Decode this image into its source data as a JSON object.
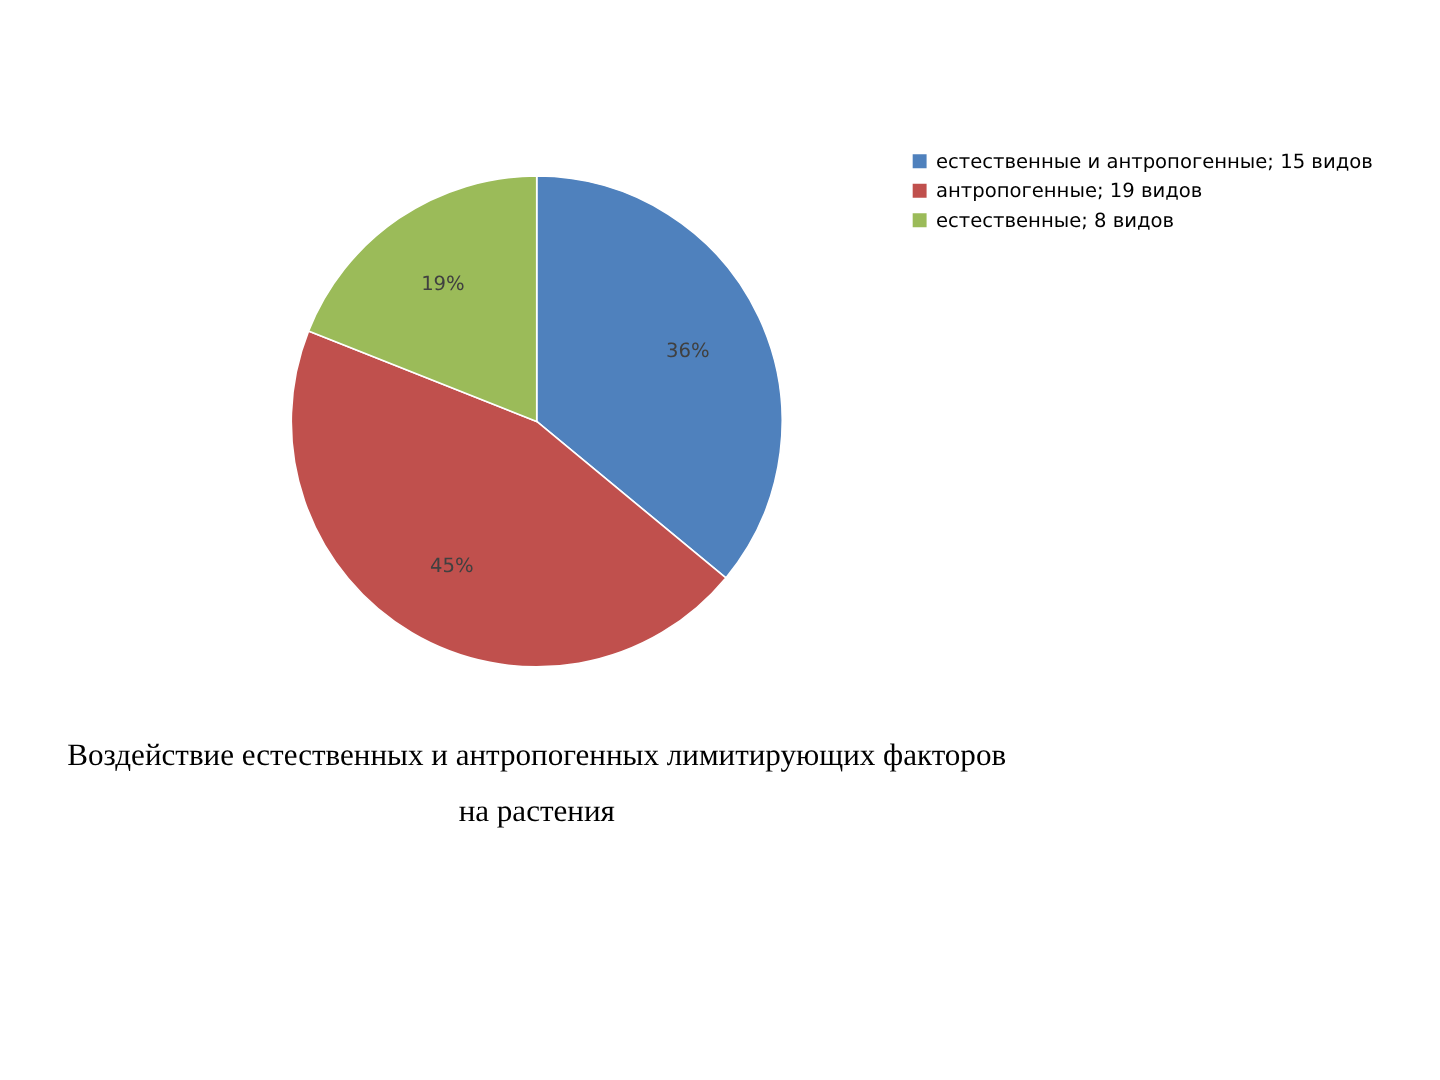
{
  "chart_data": {
    "type": "pie",
    "title": "Воздействие естественных и антропогенных лимитирующих факторов на растения",
    "categories": [
      "естественные и антропогенные; 15 видов",
      "антропогенные; 19 видов",
      "естественные; 8 видов"
    ],
    "values": [
      36,
      45,
      19
    ],
    "colors": [
      "#4f81bd",
      "#c0504d",
      "#9bbb59"
    ],
    "value_labels": [
      "36%",
      "45%",
      "19%"
    ],
    "legend": "right"
  }
}
